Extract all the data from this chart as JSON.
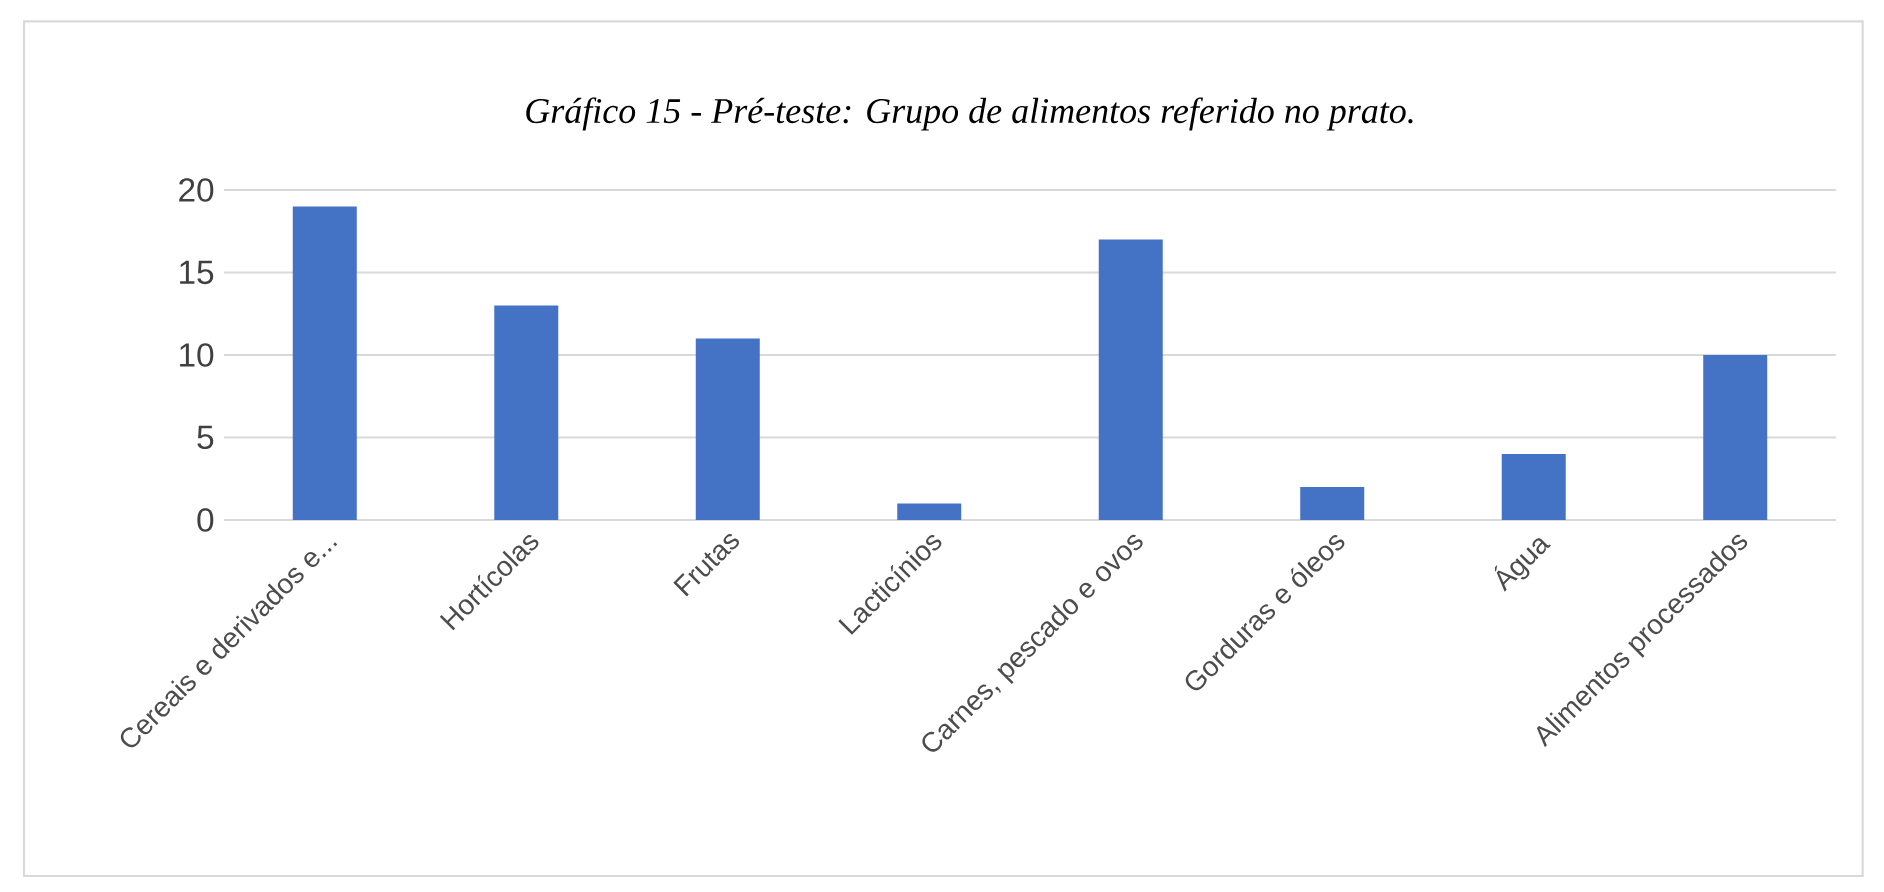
{
  "chart_data": {
    "type": "bar",
    "title": "Gráfico 15 - Pré-teste: Grupo de alimentos referido no prato.",
    "categories": [
      "Cereais e derivados e...",
      "Hortícolas",
      "Frutas",
      "Lacticínios",
      "Carnes, pescado e ovos",
      "Gorduras e óleos",
      "Água",
      "Alimentos processados"
    ],
    "values": [
      19,
      13,
      11,
      1,
      17,
      2,
      4,
      10
    ],
    "color": "#4472c4",
    "ylim": [
      0,
      20
    ],
    "yticks": [
      0,
      5,
      10,
      15,
      20
    ],
    "grid": "y"
  }
}
